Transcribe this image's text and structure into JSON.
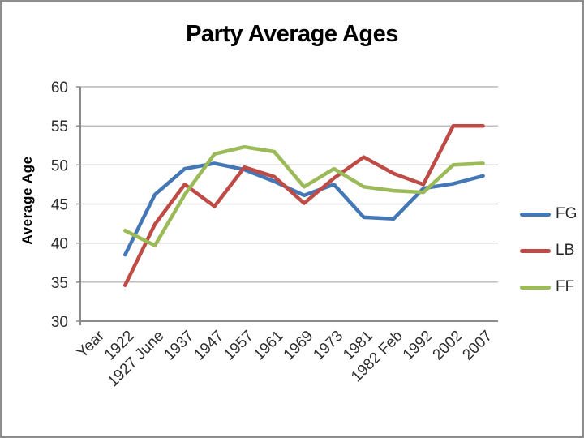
{
  "chart_data": {
    "type": "line",
    "title": "Party Average Ages",
    "ylabel": "Average Age",
    "xlabel": "",
    "ylim": [
      30,
      60
    ],
    "yticks": [
      30,
      35,
      40,
      45,
      50,
      55,
      60
    ],
    "grid": true,
    "legend_position": "right",
    "categories": [
      "Year",
      "1922",
      "1927 June",
      "1937",
      "1947",
      "1957",
      "1961",
      "1969",
      "1973",
      "1981",
      "1982 Feb",
      "1992",
      "2002",
      "2007"
    ],
    "series": [
      {
        "name": "FG",
        "color": "#4477B5",
        "values": [
          null,
          38.5,
          46.2,
          49.5,
          50.2,
          49.4,
          47.9,
          46.1,
          47.5,
          43.3,
          43.1,
          47.0,
          47.6,
          48.6
        ]
      },
      {
        "name": "LB",
        "color": "#BF4B47",
        "values": [
          null,
          34.6,
          42.4,
          47.5,
          44.7,
          49.7,
          48.5,
          45.1,
          48.3,
          51.0,
          48.9,
          47.5,
          55.0,
          55.0
        ]
      },
      {
        "name": "FF",
        "color": "#9BBA58",
        "values": [
          null,
          41.6,
          39.7,
          46.2,
          51.4,
          52.3,
          51.7,
          47.2,
          49.5,
          47.2,
          46.7,
          46.5,
          50.0,
          50.2
        ]
      }
    ]
  }
}
